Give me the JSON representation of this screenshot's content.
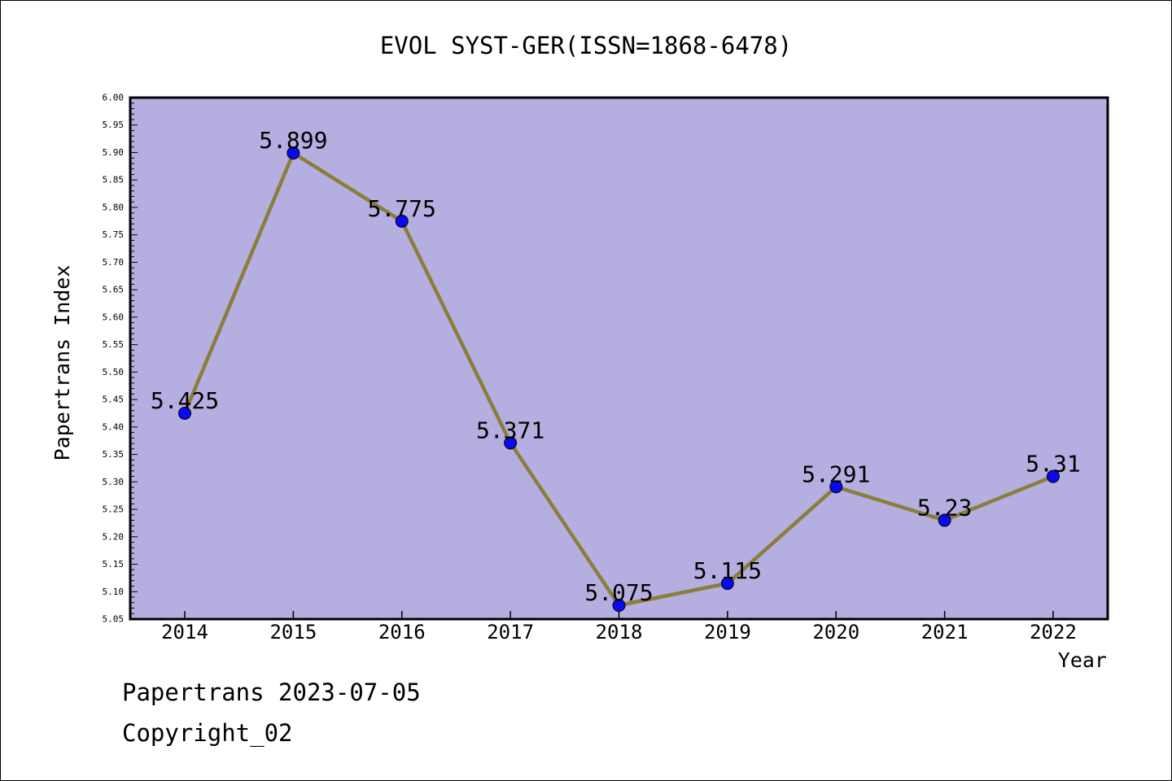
{
  "chart_data": {
    "type": "line",
    "title": "EVOL SYST-GER(ISSN=1868-6478)",
    "xlabel": "Year",
    "ylabel": "Papertrans Index",
    "categories": [
      "2014",
      "2015",
      "2016",
      "2017",
      "2018",
      "2019",
      "2020",
      "2021",
      "2022"
    ],
    "series": [
      {
        "values": [
          5.425,
          5.899,
          5.775,
          5.371,
          5.075,
          5.115,
          5.291,
          5.23,
          5.31
        ],
        "labels": [
          "5.425",
          "5.899",
          "5.775",
          "5.371",
          "5.075",
          "5.115",
          "5.291",
          "5.23",
          "5.31"
        ]
      }
    ],
    "ylim": [
      5.05,
      6.0
    ],
    "ytick_labels": [
      "5.05",
      "5.10",
      "5.15",
      "5.20",
      "5.25",
      "5.30",
      "5.35",
      "5.40",
      "5.45",
      "5.50",
      "5.55",
      "5.60",
      "5.65",
      "5.70",
      "5.75",
      "5.80",
      "5.85",
      "5.90",
      "5.95",
      "6.00"
    ],
    "grid": false,
    "legend": "none",
    "colors": {
      "plot_background": "#b5aee1",
      "line": "#8b7d3a",
      "marker": "#0a0af0",
      "axis": "#000000"
    }
  },
  "footer": {
    "line1": "Papertrans 2023-07-05",
    "line2": "Copyright_02"
  }
}
